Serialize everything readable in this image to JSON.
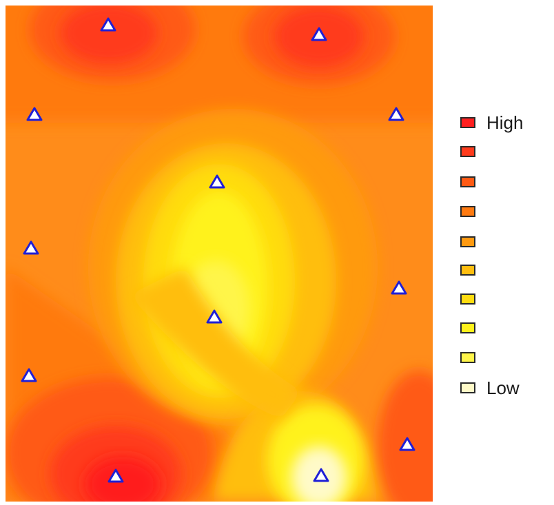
{
  "legend": {
    "items": [
      {
        "label": "High",
        "color": "#ff1f1f"
      },
      {
        "label": "",
        "color": "#ff3b1c"
      },
      {
        "label": "",
        "color": "#ff5a14"
      },
      {
        "label": "",
        "color": "#ff7a10"
      },
      {
        "label": "",
        "color": "#ff9a10"
      },
      {
        "label": "",
        "color": "#ffbe10"
      },
      {
        "label": "",
        "color": "#ffdc10"
      },
      {
        "label": "",
        "color": "#fff21c"
      },
      {
        "label": "",
        "color": "#fff54a"
      },
      {
        "label": "Low",
        "color": "#fffac8"
      }
    ]
  },
  "map": {
    "background_color": "#ff8c1a",
    "marker_stroke_color": "#1f1fd6",
    "marker_fill_color": "#ffffff",
    "marker_icon": "triangle-icon"
  }
}
